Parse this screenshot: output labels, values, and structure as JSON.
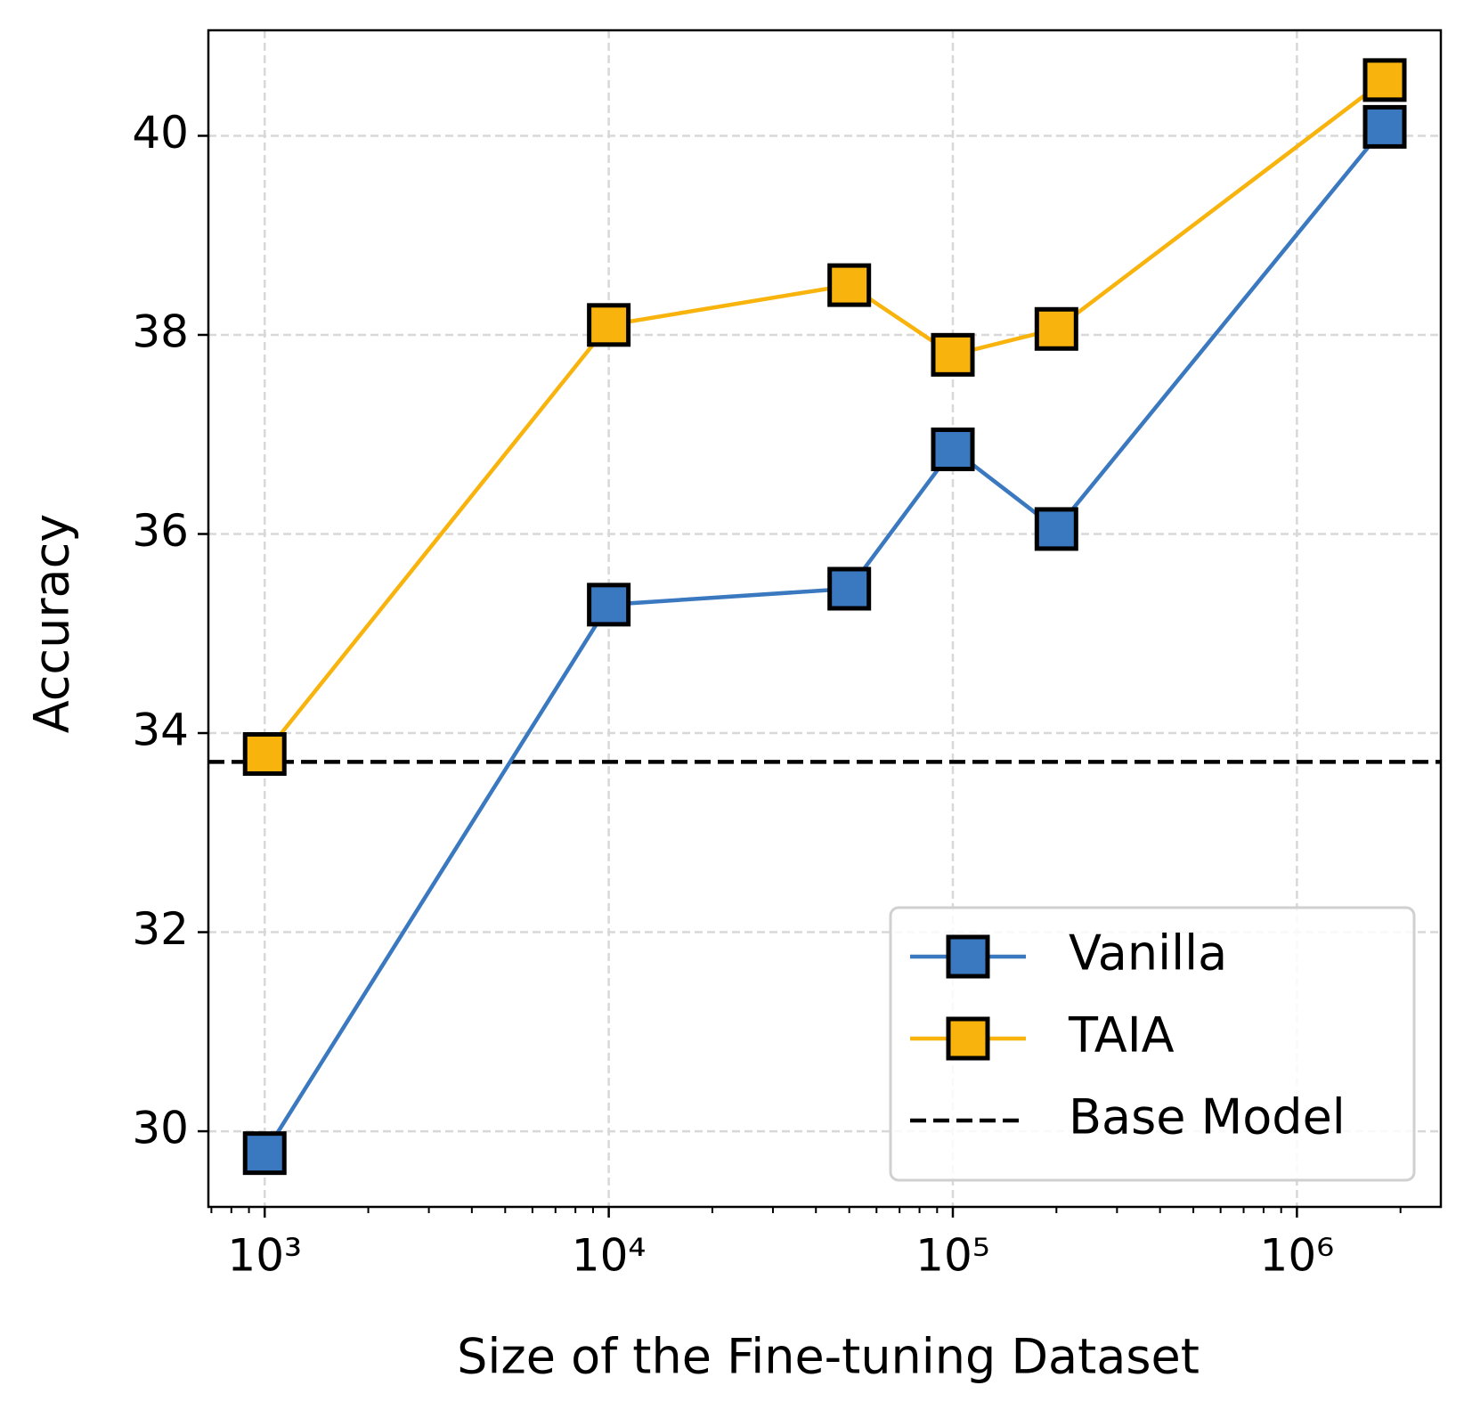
{
  "chart_data": {
    "type": "line",
    "xlabel": "Size of the Fine-tuning Dataset",
    "ylabel": "Accuracy",
    "x": [
      1000,
      10000,
      50000,
      100000,
      200000,
      1800000
    ],
    "series": [
      {
        "name": "Vanilla",
        "color": "#3a78c0",
        "marker": "square",
        "values": [
          29.78,
          35.29,
          35.45,
          36.85,
          36.05,
          40.09
        ]
      },
      {
        "name": "TAIA",
        "color": "#f8b30d",
        "marker": "square",
        "values": [
          33.79,
          38.1,
          38.5,
          37.8,
          38.06,
          40.56
        ]
      }
    ],
    "hlines": [
      {
        "name": "Base Model",
        "value": 33.71,
        "color": "#000000",
        "style": "dashed"
      }
    ],
    "xscale": "log",
    "xlim": [
      686,
      2620000
    ],
    "ylim": [
      29.24,
      41.06
    ],
    "xticks": [
      {
        "value": 1000,
        "label": "10³"
      },
      {
        "value": 10000,
        "label": "10⁴"
      },
      {
        "value": 100000,
        "label": "10⁵"
      },
      {
        "value": 1000000,
        "label": "10⁶"
      }
    ],
    "xminorticks": [
      700,
      800,
      900,
      2000,
      3000,
      4000,
      5000,
      6000,
      7000,
      8000,
      9000,
      20000,
      30000,
      40000,
      50000,
      60000,
      70000,
      80000,
      90000,
      200000,
      300000,
      400000,
      500000,
      600000,
      700000,
      800000,
      900000,
      2000000
    ],
    "yticks": [
      30,
      32,
      34,
      36,
      38,
      40
    ],
    "grid": true,
    "legend": "lower right"
  }
}
